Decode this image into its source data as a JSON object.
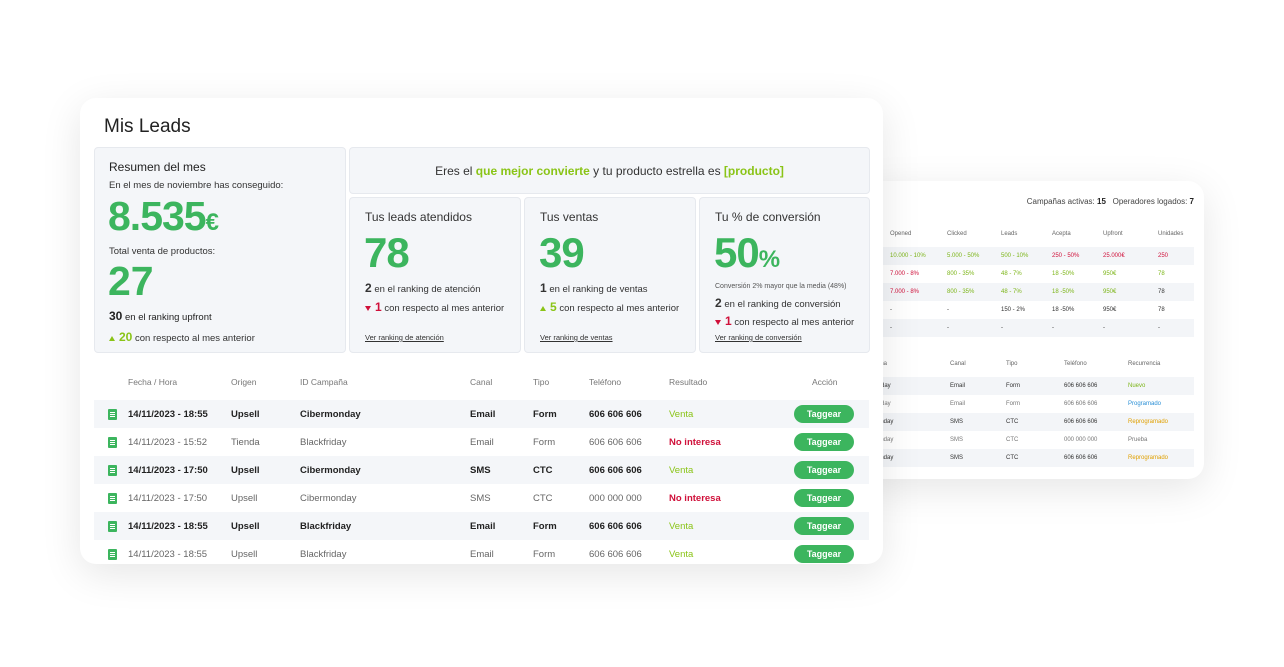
{
  "back": {
    "campaigns_label": "Campañas activas:",
    "campaigns_value": "15",
    "operators_label": "Operadores logados:",
    "operators_value": "7",
    "table1": {
      "headers": [
        "Opened",
        "Clicked",
        "Leads",
        "Acepta",
        "Upfront",
        "Unidades"
      ],
      "rows": [
        [
          "10.000 - 10%",
          "5.000 - 50%",
          "500 - 10%",
          "250 - 50%",
          "25.000€",
          "250"
        ],
        [
          "7.000 - 8%",
          "800 - 35%",
          "48 - 7%",
          "18 -50%",
          "950€",
          "78"
        ],
        [
          "7.000 - 8%",
          "800 - 35%",
          "48 - 7%",
          "18 -50%",
          "950€",
          "78"
        ],
        [
          "-",
          "-",
          "150 - 2%",
          "18 -50%",
          "950€",
          "78"
        ],
        [
          "-",
          "-",
          "-",
          "-",
          "-",
          "-"
        ]
      ]
    },
    "table2": {
      "headers": [
        "aña",
        "Canal",
        "Tipo",
        "Teléfono",
        "Recurrencia"
      ],
      "rows": [
        [
          "day",
          "Email",
          "Form",
          "606 606 606",
          "Nuevo"
        ],
        [
          "day",
          "Email",
          "Form",
          "606 606 606",
          "Programado"
        ],
        [
          "onday",
          "SMS",
          "CTC",
          "606 606 606",
          "Reprogramado"
        ],
        [
          "onday",
          "SMS",
          "CTC",
          "000 000 000",
          "Prueba"
        ],
        [
          "onday",
          "SMS",
          "CTC",
          "606 606 606",
          "Reprogramado"
        ]
      ]
    }
  },
  "main": {
    "title": "Mis Leads",
    "summary": {
      "title": "Resumen del mes",
      "subtitle": "En el mes de noviembre has conseguido:",
      "amount": "8.535",
      "currency": "€",
      "products_label": "Total venta de productos:",
      "products_value": "27",
      "ranking_value": "30",
      "ranking_text": "en el ranking upfront",
      "delta_value": "20",
      "delta_text": "con respecto al mes anterior"
    },
    "banner": {
      "pre": "Eres el",
      "highlight": "que mejor convierte",
      "mid": "y tu producto estrella es",
      "product": "[producto]"
    },
    "kpis": {
      "leads": {
        "title": "Tus leads atendidos",
        "value": "78",
        "rank_value": "2",
        "rank_text": "en el ranking de atención",
        "delta_value": "1",
        "delta_text": "con respecto al mes anterior",
        "link": "Ver ranking de atención"
      },
      "sales": {
        "title": "Tus ventas",
        "value": "39",
        "rank_value": "1",
        "rank_text": "en el ranking de ventas",
        "delta_value": "5",
        "delta_text": "con respecto al mes anterior",
        "link": "Ver ranking de ventas"
      },
      "conversion": {
        "title": "Tu % de conversión",
        "value": "50",
        "unit": "%",
        "note": "Conversión 2% mayor que la media (48%)",
        "rank_value": "2",
        "rank_text": "en el ranking de conversión",
        "delta_value": "1",
        "delta_text": "con respecto al mes anterior",
        "link": "Ver ranking de conversión"
      }
    },
    "table": {
      "headers": [
        "Fecha / Hora",
        "Origen",
        "ID Campaña",
        "Canal",
        "Tipo",
        "Teléfono",
        "Resultado",
        "Acción"
      ],
      "button_label": "Taggear",
      "rows": [
        {
          "date": "14/11/2023 - 18:55",
          "origin": "Upsell",
          "campaign": "Cibermonday",
          "channel": "Email",
          "type": "Form",
          "phone": "606 606 606",
          "result": "Venta"
        },
        {
          "date": "14/11/2023 - 15:52",
          "origin": "Tienda",
          "campaign": "Blackfriday",
          "channel": "Email",
          "type": "Form",
          "phone": "606 606 606",
          "result": "No interesa"
        },
        {
          "date": "14/11/2023 - 17:50",
          "origin": "Upsell",
          "campaign": "Cibermonday",
          "channel": "SMS",
          "type": "CTC",
          "phone": "606 606 606",
          "result": "Venta"
        },
        {
          "date": "14/11/2023 - 17:50",
          "origin": "Upsell",
          "campaign": "Cibermonday",
          "channel": "SMS",
          "type": "CTC",
          "phone": "000 000 000",
          "result": "No interesa"
        },
        {
          "date": "14/11/2023 - 18:55",
          "origin": "Upsell",
          "campaign": "Blackfriday",
          "channel": "Email",
          "type": "Form",
          "phone": "606 606 606",
          "result": "Venta"
        },
        {
          "date": "14/11/2023 - 18:55",
          "origin": "Upsell",
          "campaign": "Blackfriday",
          "channel": "Email",
          "type": "Form",
          "phone": "606 606 606",
          "result": "Venta"
        }
      ]
    }
  },
  "colors": {
    "accent_green": "#3cb55e",
    "lime": "#8ac417",
    "negative_red": "#d0103a"
  },
  "icons": {
    "row_icon": "document-icon",
    "up": "triangle-up-icon",
    "down": "triangle-down-icon"
  }
}
